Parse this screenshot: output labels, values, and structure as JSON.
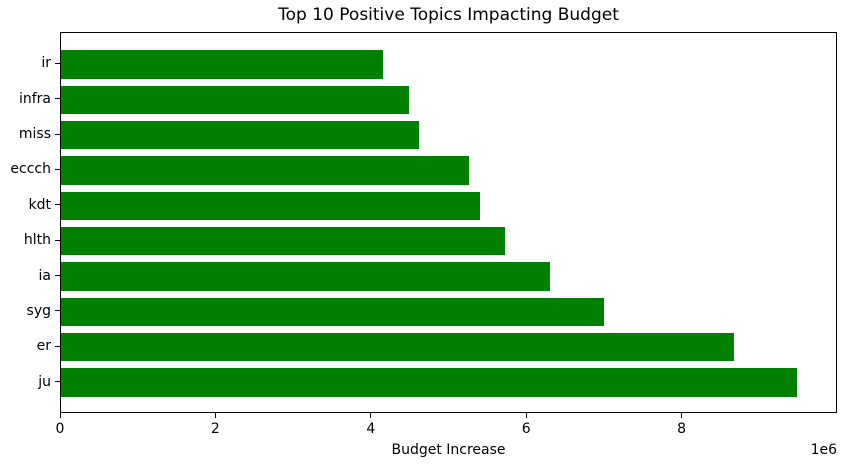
{
  "figure": {
    "background": "#ffffff",
    "text_color": "#000000",
    "spine_color": "#000000"
  },
  "chart_data": {
    "type": "bar",
    "orientation": "horizontal",
    "title": "Top 10 Positive Topics Impacting Budget",
    "xlabel": "Budget Increase",
    "ylabel": "",
    "categories": [
      "ir",
      "infra",
      "miss",
      "eccch",
      "kdt",
      "hlth",
      "ia",
      "syg",
      "er",
      "ju"
    ],
    "categories_order": "top-to-bottom",
    "values": [
      4150000,
      4490000,
      4620000,
      5260000,
      5410000,
      5730000,
      6310000,
      7000000,
      8690000,
      9500000
    ],
    "bar_color": "#008000",
    "xlim": [
      0,
      10000000
    ],
    "xticks": [
      0,
      2000000,
      4000000,
      6000000,
      8000000
    ],
    "xtick_labels": [
      "0",
      "2",
      "4",
      "6",
      "8"
    ],
    "offset_label": "1e6",
    "grid": false,
    "legend": null
  }
}
